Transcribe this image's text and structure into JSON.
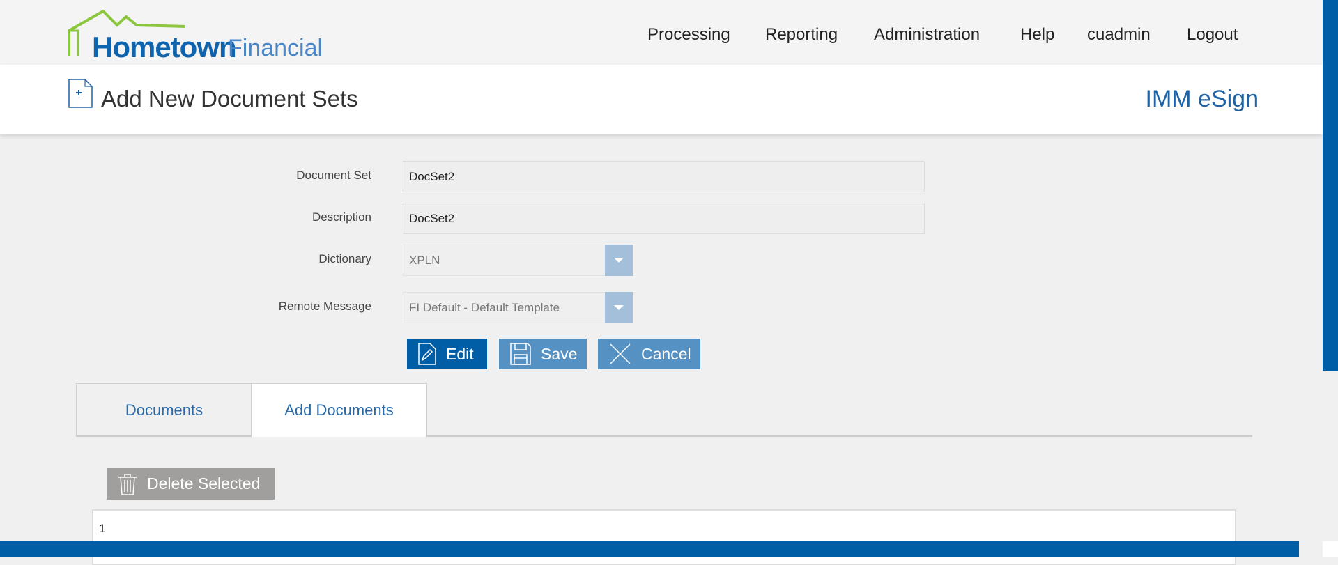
{
  "header": {
    "logo_text": "Hometown Financial",
    "logo_main": "Hometown",
    "logo_sub": "Financial",
    "nav": [
      "Processing",
      "Reporting",
      "Administration",
      "Help",
      "cuadmin",
      "Logout"
    ]
  },
  "page": {
    "title": "Add New Document Sets",
    "brand": "IMM eSign"
  },
  "form": {
    "document_set": {
      "label": "Document Set",
      "value": "DocSet2"
    },
    "description": {
      "label": "Description",
      "value": "DocSet2"
    },
    "dictionary": {
      "label": "Dictionary",
      "value": "XPLN"
    },
    "remote_message": {
      "label": "Remote Message",
      "value": "FI Default - Default Template"
    }
  },
  "buttons": {
    "edit": "Edit",
    "save": "Save",
    "cancel": "Cancel"
  },
  "tabs": [
    {
      "label": "Documents",
      "active": false
    },
    {
      "label": "Add Documents",
      "active": true
    }
  ],
  "delete_selected": "Delete Selected",
  "table": {
    "rows": [
      [
        "1"
      ]
    ]
  },
  "colors": {
    "primary": "#005ea6",
    "button_light": "#5591c2",
    "logo_green": "#8cc63f"
  }
}
